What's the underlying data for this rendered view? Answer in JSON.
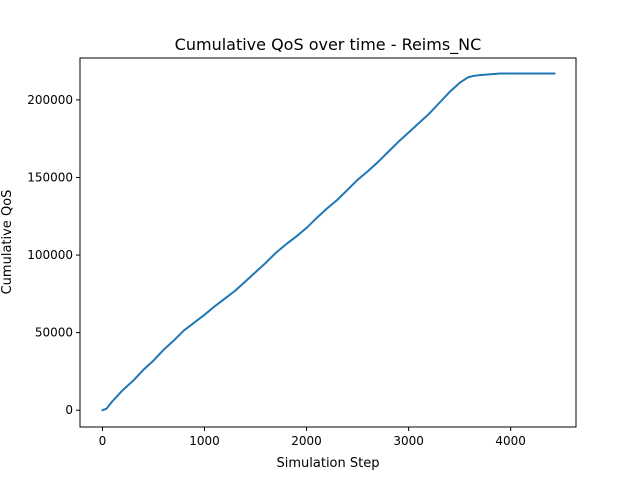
{
  "chart_data": {
    "type": "line",
    "title": "Cumulative QoS over time - Reims_NC",
    "xlabel": "Simulation Step",
    "ylabel": "Cumulative QoS",
    "xlim": [
      -220,
      4640
    ],
    "ylim": [
      -10800,
      227000
    ],
    "xticks": [
      0,
      1000,
      2000,
      3000,
      4000
    ],
    "xtick_labels": [
      "0",
      "1000",
      "2000",
      "3000",
      "4000"
    ],
    "yticks": [
      0,
      50000,
      100000,
      150000,
      200000
    ],
    "ytick_labels": [
      "0",
      "50000",
      "100000",
      "150000",
      "200000"
    ],
    "grid": false,
    "legend": "none",
    "series": [
      {
        "color": "#1f77b4",
        "x": [
          0,
          40,
          100,
          200,
          300,
          400,
          500,
          600,
          700,
          800,
          900,
          1000,
          1100,
          1200,
          1300,
          1400,
          1500,
          1600,
          1700,
          1800,
          1900,
          2000,
          2100,
          2200,
          2300,
          2400,
          2500,
          2600,
          2700,
          2800,
          2900,
          3000,
          3100,
          3200,
          3300,
          3400,
          3500,
          3580,
          3640,
          3700,
          3800,
          3900,
          4000,
          4100,
          4200,
          4300,
          4430
        ],
        "y": [
          0,
          1000,
          6000,
          13000,
          19000,
          26000,
          32000,
          39000,
          45000,
          51500,
          56500,
          61500,
          67000,
          72000,
          77000,
          83000,
          89000,
          95000,
          101500,
          107000,
          112000,
          117500,
          124000,
          130000,
          135500,
          142000,
          148500,
          154000,
          160000,
          166500,
          173000,
          179000,
          185000,
          191000,
          198000,
          205000,
          211000,
          214500,
          215500,
          216000,
          216500,
          217000,
          217000,
          217000,
          217000,
          217000,
          217000
        ]
      }
    ]
  }
}
